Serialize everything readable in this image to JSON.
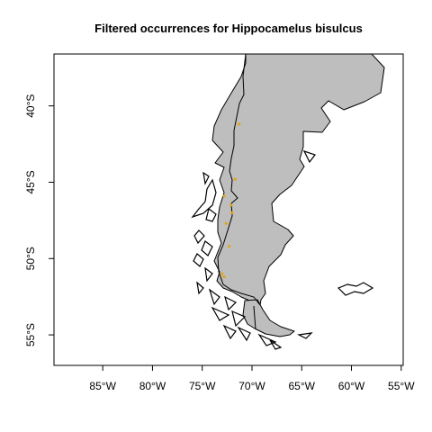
{
  "map": {
    "title": "Filtered occurrences for Hippocamelus bisulcus",
    "x_ticks": [
      {
        "value": -85,
        "label": "85°W"
      },
      {
        "value": -80,
        "label": "80°W"
      },
      {
        "value": -75,
        "label": "75°W"
      },
      {
        "value": -70,
        "label": "70°W"
      },
      {
        "value": -65,
        "label": "65°W"
      },
      {
        "value": -60,
        "label": "60°W"
      },
      {
        "value": -55,
        "label": "55°W"
      }
    ],
    "y_ticks": [
      {
        "value": -40,
        "label": "40°S"
      },
      {
        "value": -45,
        "label": "45°S"
      },
      {
        "value": -50,
        "label": "50°S"
      },
      {
        "value": -55,
        "label": "55°S"
      }
    ],
    "xlim": [
      -89.9,
      -54.8
    ],
    "ylim": [
      -57.0,
      -36.6
    ],
    "colors": {
      "land": "#bebebe",
      "border": "#000000",
      "points": "#e0a31a"
    },
    "occurrences": [
      {
        "lon": -71.3,
        "lat": -41.2
      },
      {
        "lon": -71.7,
        "lat": -44.8
      },
      {
        "lon": -72.8,
        "lat": -45.9
      },
      {
        "lon": -72.1,
        "lat": -46.5
      },
      {
        "lon": -72.0,
        "lat": -47.0
      },
      {
        "lon": -72.6,
        "lat": -47.7
      },
      {
        "lon": -72.3,
        "lat": -49.2
      },
      {
        "lon": -72.8,
        "lat": -51.2
      },
      {
        "lon": -73.0,
        "lat": -51.0
      }
    ]
  }
}
